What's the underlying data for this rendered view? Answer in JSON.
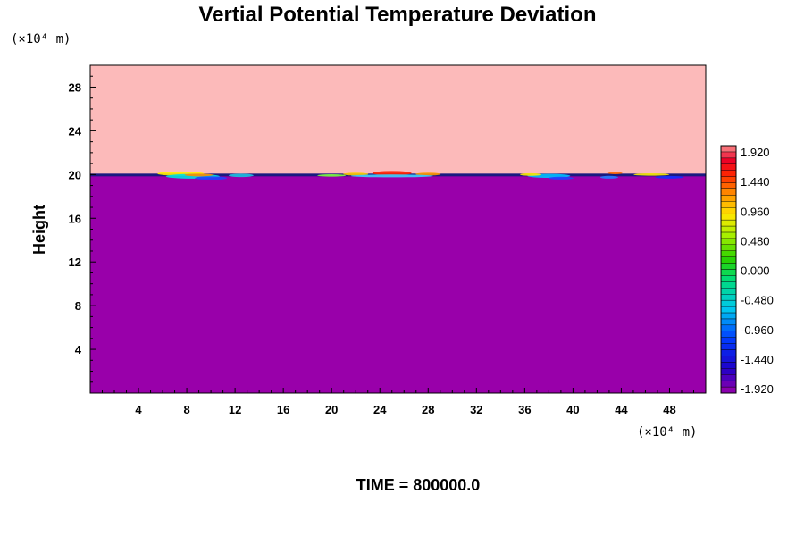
{
  "chart_data": {
    "type": "heatmap",
    "title": "Vertial Potential Temperature Deviation",
    "ylabel": "Height",
    "x_unit_label": "(×10⁴ m)",
    "y_unit_label": "(×10⁴ m)",
    "time_label": "TIME = 800000.0",
    "xlim": [
      0,
      51
    ],
    "ylim": [
      0,
      30
    ],
    "xticks": [
      4,
      8,
      12,
      16,
      20,
      24,
      28,
      32,
      36,
      40,
      44,
      48
    ],
    "yticks": [
      4,
      8,
      12,
      16,
      20,
      24,
      28
    ],
    "interface_height": 20,
    "regions": [
      {
        "name": "upper",
        "y_range": [
          20,
          30
        ],
        "color": "#fcbaba"
      },
      {
        "name": "lower",
        "y_range": [
          0,
          20
        ],
        "color": "#9900aa"
      }
    ],
    "colorbar": {
      "labels": [
        "1.920",
        "1.440",
        "0.960",
        "0.480",
        "0.000",
        "-0.480",
        "-0.960",
        "-1.440",
        "-1.920"
      ],
      "range": [
        -1.92,
        1.92
      ]
    }
  }
}
